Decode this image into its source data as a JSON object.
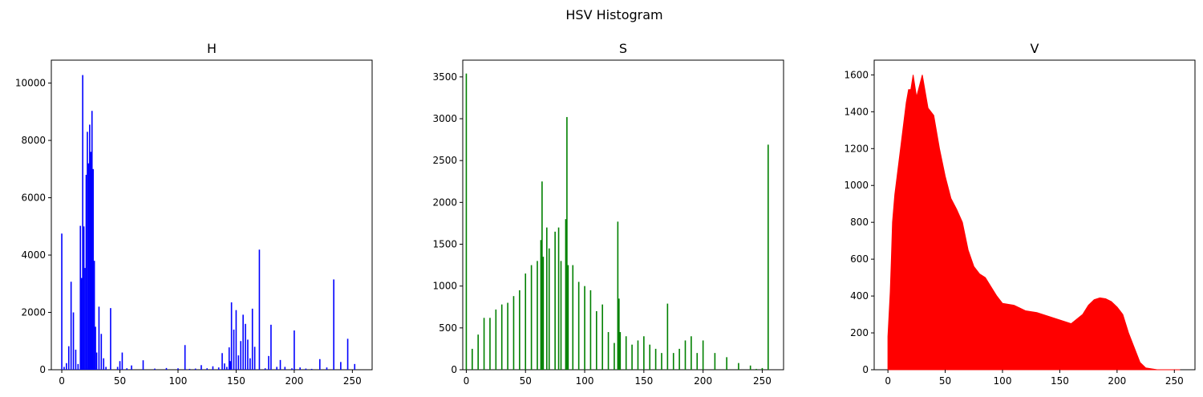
{
  "figure": {
    "suptitle": "HSV Histogram"
  },
  "chart_data": [
    {
      "type": "bar",
      "title": "H",
      "color": "#0000ff",
      "xlim": [
        -9,
        267
      ],
      "ylim": [
        0,
        10800
      ],
      "xticks": [
        0,
        50,
        100,
        150,
        200,
        250
      ],
      "yticks": [
        0,
        2000,
        4000,
        6000,
        8000,
        10000
      ],
      "x": [
        0,
        2,
        4,
        6,
        8,
        10,
        12,
        14,
        16,
        17,
        18,
        19,
        20,
        21,
        22,
        23,
        24,
        25,
        26,
        27,
        28,
        29,
        30,
        32,
        34,
        36,
        38,
        42,
        48,
        50,
        52,
        56,
        60,
        70,
        80,
        90,
        100,
        106,
        110,
        115,
        120,
        125,
        130,
        135,
        138,
        140,
        142,
        144,
        145,
        146,
        148,
        150,
        152,
        154,
        156,
        158,
        160,
        162,
        164,
        166,
        170,
        175,
        178,
        180,
        185,
        188,
        192,
        198,
        200,
        205,
        210,
        215,
        222,
        228,
        234,
        240,
        246,
        252
      ],
      "values": [
        4750,
        100,
        230,
        820,
        3070,
        2000,
        700,
        200,
        5020,
        3200,
        10280,
        5000,
        3550,
        6800,
        8300,
        7200,
        8550,
        7600,
        9030,
        7000,
        3800,
        1500,
        600,
        2200,
        1250,
        400,
        100,
        2150,
        100,
        300,
        600,
        50,
        150,
        330,
        40,
        60,
        50,
        860,
        30,
        40,
        160,
        50,
        120,
        80,
        580,
        220,
        100,
        780,
        300,
        2350,
        1400,
        2080,
        500,
        1000,
        1920,
        1600,
        1050,
        400,
        2130,
        800,
        4190,
        50,
        480,
        1570,
        100,
        340,
        100,
        50,
        1370,
        80,
        40,
        30,
        370,
        80,
        3150,
        270,
        1080,
        200
      ]
    },
    {
      "type": "bar",
      "title": "S",
      "color": "#008000",
      "xlim": [
        -3,
        268
      ],
      "ylim": [
        0,
        3700
      ],
      "xticks": [
        0,
        50,
        100,
        150,
        200,
        250
      ],
      "yticks": [
        0,
        500,
        1000,
        1500,
        2000,
        2500,
        3000,
        3500
      ],
      "x": [
        0,
        5,
        10,
        15,
        20,
        25,
        30,
        35,
        40,
        45,
        50,
        55,
        60,
        63,
        64,
        65,
        68,
        70,
        75,
        78,
        80,
        84,
        85,
        86,
        90,
        95,
        100,
        105,
        110,
        115,
        120,
        125,
        128,
        129,
        130,
        135,
        140,
        145,
        150,
        155,
        160,
        165,
        170,
        175,
        180,
        185,
        190,
        195,
        200,
        210,
        220,
        230,
        240,
        245,
        250,
        255
      ],
      "values": [
        3540,
        250,
        420,
        620,
        620,
        720,
        780,
        800,
        880,
        950,
        1150,
        1250,
        1300,
        1550,
        2250,
        1350,
        1700,
        1450,
        1650,
        1700,
        1300,
        1800,
        3020,
        1250,
        1250,
        1050,
        1000,
        950,
        700,
        780,
        450,
        320,
        1770,
        850,
        450,
        400,
        300,
        350,
        400,
        300,
        250,
        200,
        790,
        200,
        250,
        350,
        400,
        200,
        350,
        200,
        150,
        80,
        50,
        10,
        20,
        2690
      ]
    },
    {
      "type": "area",
      "title": "V",
      "color": "#ff0000",
      "xlim": [
        -12,
        268
      ],
      "ylim": [
        0,
        1680
      ],
      "xticks": [
        0,
        50,
        100,
        150,
        200,
        250
      ],
      "yticks": [
        0,
        200,
        400,
        600,
        800,
        1000,
        1200,
        1400,
        1600
      ],
      "x": [
        0,
        2,
        3,
        4,
        6,
        8,
        10,
        12,
        14,
        16,
        18,
        20,
        22,
        25,
        30,
        35,
        40,
        45,
        50,
        55,
        60,
        65,
        70,
        75,
        80,
        85,
        90,
        95,
        100,
        110,
        120,
        130,
        140,
        150,
        160,
        170,
        175,
        180,
        185,
        190,
        195,
        200,
        205,
        210,
        215,
        220,
        225,
        230,
        235,
        240,
        255
      ],
      "values": [
        180,
        420,
        600,
        800,
        950,
        1050,
        1150,
        1250,
        1350,
        1450,
        1520,
        1520,
        1600,
        1480,
        1600,
        1420,
        1380,
        1200,
        1050,
        930,
        870,
        800,
        650,
        560,
        520,
        500,
        450,
        400,
        360,
        350,
        320,
        310,
        290,
        270,
        250,
        300,
        350,
        380,
        390,
        385,
        370,
        340,
        300,
        200,
        120,
        40,
        10,
        5,
        0,
        0,
        0
      ]
    }
  ]
}
